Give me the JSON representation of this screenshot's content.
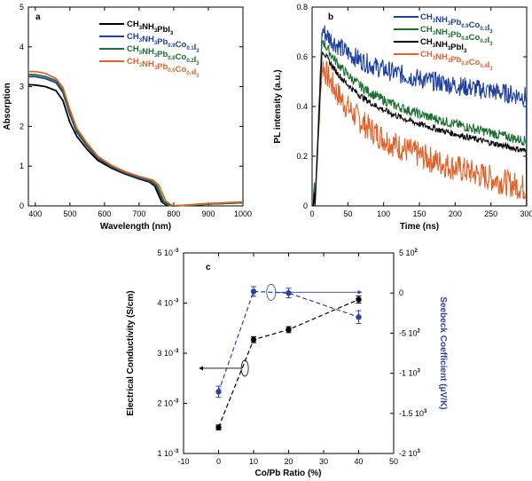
{
  "chart_data": [
    {
      "panel": "a",
      "type": "line",
      "xlabel": "Wavelength (nm)",
      "ylabel": "Absorption",
      "xlim": [
        380,
        1000
      ],
      "ylim": [
        0,
        5
      ],
      "xticks": [
        "400",
        "500",
        "600",
        "700",
        "800",
        "900",
        "1000"
      ],
      "yticks": [
        "0",
        "1",
        "2",
        "3",
        "4",
        "5"
      ],
      "legend_position": "top-right",
      "series": [
        {
          "name": "CH3NH3PbI3",
          "color": "#000000",
          "x": [
            380,
            400,
            430,
            460,
            480,
            500,
            520,
            550,
            580,
            620,
            660,
            700,
            730,
            745,
            755,
            765,
            780,
            800,
            850,
            900,
            1000
          ],
          "values": [
            3.05,
            3.04,
            3.0,
            2.9,
            2.65,
            2.1,
            1.75,
            1.42,
            1.15,
            0.95,
            0.8,
            0.68,
            0.6,
            0.5,
            0.3,
            0.1,
            0.02,
            0.0,
            0.02,
            0.05,
            0.08
          ]
        },
        {
          "name": "CH3NH3Pb0.9Co0.1I3",
          "color": "#1f3f9f",
          "x": [
            380,
            400,
            430,
            460,
            480,
            500,
            520,
            550,
            580,
            620,
            660,
            700,
            730,
            750,
            760,
            770,
            785,
            800,
            850,
            900,
            1000
          ],
          "values": [
            3.25,
            3.25,
            3.2,
            3.1,
            2.85,
            2.3,
            1.85,
            1.5,
            1.2,
            0.98,
            0.82,
            0.7,
            0.62,
            0.5,
            0.3,
            0.1,
            0.02,
            0.0,
            0.02,
            0.05,
            0.08
          ]
        },
        {
          "name": "CH3NH3Pb0.8Co0.2I3",
          "color": "#1a6e2e",
          "x": [
            380,
            400,
            430,
            460,
            480,
            500,
            520,
            550,
            580,
            620,
            660,
            700,
            735,
            752,
            762,
            772,
            787,
            800,
            850,
            900,
            1000
          ],
          "values": [
            3.3,
            3.3,
            3.25,
            3.15,
            2.9,
            2.35,
            1.9,
            1.53,
            1.22,
            1.0,
            0.84,
            0.72,
            0.63,
            0.5,
            0.3,
            0.1,
            0.02,
            0.0,
            0.02,
            0.05,
            0.08
          ]
        },
        {
          "name": "CH3NH3Pb0.6Co0.4I3",
          "color": "#e0622a",
          "x": [
            380,
            400,
            430,
            460,
            480,
            500,
            520,
            550,
            580,
            620,
            660,
            700,
            740,
            757,
            767,
            777,
            792,
            805,
            850,
            900,
            1000
          ],
          "values": [
            3.38,
            3.38,
            3.33,
            3.2,
            2.98,
            2.42,
            1.95,
            1.57,
            1.25,
            1.02,
            0.86,
            0.74,
            0.65,
            0.52,
            0.32,
            0.12,
            0.03,
            0.0,
            0.03,
            0.06,
            0.1
          ]
        }
      ]
    },
    {
      "panel": "b",
      "type": "line",
      "xlabel": "Time (ns)",
      "ylabel": "PL intensity (a.u.)",
      "xlim": [
        0,
        300
      ],
      "ylim": [
        0,
        0.8
      ],
      "xticks": [
        "0",
        "50",
        "100",
        "150",
        "200",
        "250",
        "300"
      ],
      "yticks": [
        "0",
        "0.2",
        "0.4",
        "0.6",
        "0.8"
      ],
      "legend_position": "top-right",
      "series": [
        {
          "name": "CH3NH3Pb0.9Co0.1I3",
          "color": "#1f3f9f",
          "peak_time": 14,
          "peak": 0.71,
          "end": 0.44,
          "noise": 0.08
        },
        {
          "name": "CH3NH3Pb0.8Co0.2I3",
          "color": "#1a6e2e",
          "peak_time": 14,
          "peak": 0.67,
          "end": 0.26,
          "noise": 0.04
        },
        {
          "name": "CH3NH3PbI3",
          "color": "#000000",
          "peak_time": 14,
          "peak": 0.63,
          "end": 0.22,
          "noise": 0.025
        },
        {
          "name": "CH3NH3Pb0.6Co0.4I3",
          "color": "#e0622a",
          "peak_time": 14,
          "peak": 0.57,
          "end": 0.07,
          "noise": 0.11
        }
      ]
    },
    {
      "panel": "c",
      "type": "scatter",
      "xlabel": "Co/Pb Ratio (%)",
      "ylabel_left": "Electrical Conductivity (S/cm)",
      "ylabel_right": "Seebeck Coefficient (μV/K)",
      "xlim": [
        -10,
        50
      ],
      "ylim_left": [
        0.001,
        0.005
      ],
      "ylim_right": [
        -2000,
        500
      ],
      "xticks": [
        "-10",
        "0",
        "10",
        "20",
        "30",
        "40",
        "50"
      ],
      "yticks_left": [
        "1 10",
        "2 10",
        "3 10",
        "4 10",
        "5 10"
      ],
      "yticks_right": [
        "-2 10",
        "-1.5 10",
        "-1 10",
        "-5 10",
        "0",
        "5 10"
      ],
      "series": [
        {
          "name": "Electrical Conductivity",
          "color": "#000000",
          "x": [
            0,
            10,
            20,
            40
          ],
          "values": [
            0.00152,
            0.00327,
            0.00347,
            0.00407
          ],
          "errors": [
            5e-05,
            6e-05,
            6e-05,
            7e-05
          ]
        },
        {
          "name": "Seebeck Coefficient",
          "color": "#2f3fa8",
          "x": [
            0,
            10,
            20,
            40
          ],
          "values": [
            -1230,
            20,
            0,
            -300
          ],
          "errors": [
            70,
            60,
            60,
            80
          ]
        }
      ]
    }
  ],
  "panels": {
    "a": {
      "letter": "a",
      "xlabel": "Wavelength (nm)",
      "ylabel": "Absorption",
      "xticks": [
        "400",
        "500",
        "600",
        "700",
        "800",
        "900",
        "1000"
      ],
      "yticks": [
        "0",
        "1",
        "2",
        "3",
        "4",
        "5"
      ],
      "legend": [
        {
          "main": "CH",
          "s1": "3",
          "m2": "NH",
          "s2": "3",
          "m3": "PbI",
          "s3": "3",
          "m4": "",
          "s4": "",
          "m5": "",
          "s5": ""
        },
        {
          "main": "CH",
          "s1": "3",
          "m2": "NH",
          "s2": "3",
          "m3": "Pb",
          "s3": "0.9",
          "m4": "Co",
          "s4": "0.1",
          "m5": "I",
          "s5": "3"
        },
        {
          "main": "CH",
          "s1": "3",
          "m2": "NH",
          "s2": "3",
          "m3": "Pb",
          "s3": "0.8",
          "m4": "Co",
          "s4": "0.2",
          "m5": "I",
          "s5": "3"
        },
        {
          "main": "CH",
          "s1": "3",
          "m2": "NH",
          "s2": "3",
          "m3": "Pb",
          "s3": "0.6",
          "m4": "Co",
          "s4": "0.4",
          "m5": "I",
          "s5": "3"
        }
      ]
    },
    "b": {
      "letter": "b",
      "xlabel": "Time (ns)",
      "ylabel": "PL intensity (a.u.)",
      "xticks": [
        "0",
        "50",
        "100",
        "150",
        "200",
        "250",
        "300"
      ],
      "yticks": [
        "0",
        "0.2",
        "0.4",
        "0.6",
        "0.8"
      ],
      "legend": [
        {
          "main": "CH",
          "s1": "3",
          "m2": "NH",
          "s2": "3",
          "m3": "Pb",
          "s3": "0.9",
          "m4": "Co",
          "s4": "0.1",
          "m5": "I",
          "s5": "3"
        },
        {
          "main": "CH",
          "s1": "3",
          "m2": "NH",
          "s2": "3",
          "m3": "Pb",
          "s3": "0.8",
          "m4": "Co",
          "s4": "0.2",
          "m5": "I",
          "s5": "3"
        },
        {
          "main": "CH",
          "s1": "3",
          "m2": "NH",
          "s2": "3",
          "m3": "PbI",
          "s3": "3",
          "m4": "",
          "s4": "",
          "m5": "",
          "s5": ""
        },
        {
          "main": "CH",
          "s1": "3",
          "m2": "NH",
          "s2": "3",
          "m3": "Pb",
          "s3": "0.6",
          "m4": "Co",
          "s4": "0.4",
          "m5": "I",
          "s5": "3"
        }
      ]
    },
    "c": {
      "letter": "c",
      "xlabel": "Co/Pb Ratio (%)",
      "ylabel_left": "Electrical Conductivity (S/cm)",
      "ylabel_right": "Seebeck Coefficient (μV/K)",
      "xticks": [
        "-10",
        "0",
        "10",
        "20",
        "30",
        "40",
        "50"
      ],
      "yticks_left": [
        {
          "base": "1 10",
          "exp": "-3"
        },
        {
          "base": "2 10",
          "exp": "-3"
        },
        {
          "base": "3 10",
          "exp": "-3"
        },
        {
          "base": "4 10",
          "exp": "-3"
        },
        {
          "base": "5 10",
          "exp": "-3"
        }
      ],
      "yticks_right": [
        {
          "base": "-2 10",
          "exp": "3"
        },
        {
          "base": "-1.5 10",
          "exp": "3"
        },
        {
          "base": "-1 10",
          "exp": "3"
        },
        {
          "base": "-5 10",
          "exp": "2"
        },
        {
          "base": "0",
          "exp": ""
        },
        {
          "base": "5 10",
          "exp": "2"
        }
      ]
    }
  }
}
